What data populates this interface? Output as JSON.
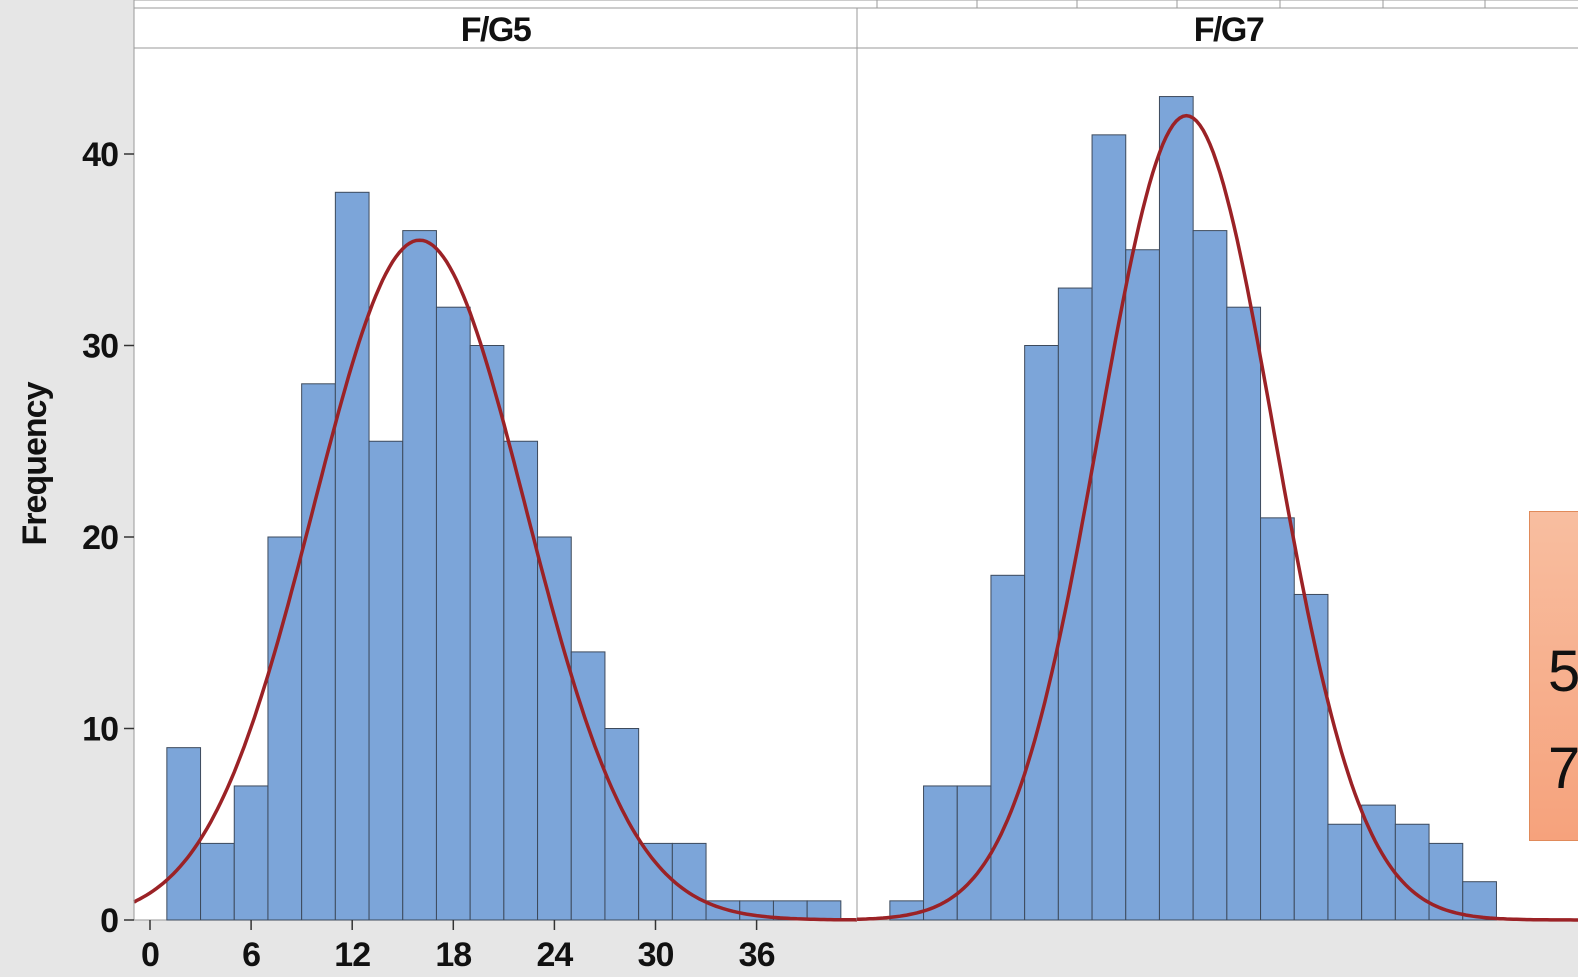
{
  "chart_data": {
    "type": "bar",
    "ylabel": "Frequency",
    "y_ticks": [
      "0",
      "10",
      "20",
      "30",
      "40"
    ],
    "x_ticks": [
      "0",
      "6",
      "12",
      "18",
      "24",
      "30",
      "36"
    ],
    "ylim": [
      0,
      45
    ],
    "panels": [
      {
        "title": "F/G5",
        "bin_start": 1,
        "bin_width": 2,
        "values": [
          9,
          4,
          7,
          20,
          28,
          38,
          25,
          36,
          32,
          30,
          25,
          20,
          14,
          10,
          4,
          4,
          1,
          1,
          1,
          1
        ],
        "fit": {
          "type": "normal",
          "mean": 16,
          "sd": 6.3,
          "peak": 35.5
        }
      },
      {
        "title": "F/G7",
        "bin_start": 1,
        "bin_width": 2,
        "values": [
          1,
          7,
          7,
          18,
          30,
          33,
          41,
          35,
          43,
          36,
          32,
          21,
          17,
          5,
          6,
          5,
          4,
          2
        ],
        "fit": {
          "type": "normal",
          "mean": 18.6,
          "sd": 5.2,
          "peak": 42
        }
      }
    ]
  },
  "annotation": {
    "line1": "5",
    "line2": "7"
  },
  "colors": {
    "bar_fill": "#7ca5d9",
    "bar_stroke": "#3d4a5c",
    "fit_line": "#9b2226",
    "background": "#e6e6e6",
    "panel_bg": "#ffffff",
    "annotation_bg": "#f6a27c"
  }
}
